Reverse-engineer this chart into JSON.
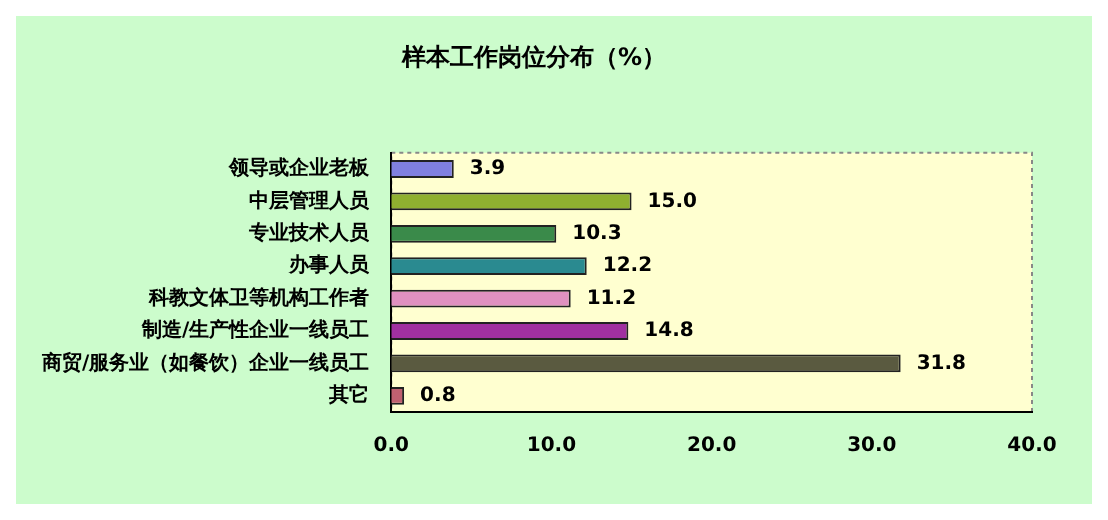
{
  "chart_data": {
    "type": "bar",
    "orientation": "horizontal",
    "title": "样本工作岗位分布（%）",
    "categories": [
      "领导或企业老板",
      "中层管理人员",
      "专业技术人员",
      "办事人员",
      "科教文体卫等机构工作者",
      "制造/生产性企业一线员工",
      "商贸/服务业（如餐饮）企业一线员工",
      "其它"
    ],
    "values": [
      3.9,
      15.0,
      10.3,
      12.2,
      11.2,
      14.8,
      31.8,
      0.8
    ],
    "value_labels": [
      "3.9",
      "15.0",
      "10.3",
      "12.2",
      "11.2",
      "14.8",
      "31.8",
      "0.8"
    ],
    "colors": [
      "#8080e0",
      "#8fb030",
      "#3a8a4a",
      "#2a8a90",
      "#e090c0",
      "#a030a0",
      "#5a5a40",
      "#c06070"
    ],
    "xlim": [
      0,
      40
    ],
    "xticks": [
      {
        "value": 0,
        "label": "0.0"
      },
      {
        "value": 10,
        "label": "10.0"
      },
      {
        "value": 20,
        "label": "20.0"
      },
      {
        "value": 30,
        "label": "30.0"
      },
      {
        "value": 40,
        "label": "40.0"
      }
    ],
    "grid": false,
    "legend": false
  }
}
